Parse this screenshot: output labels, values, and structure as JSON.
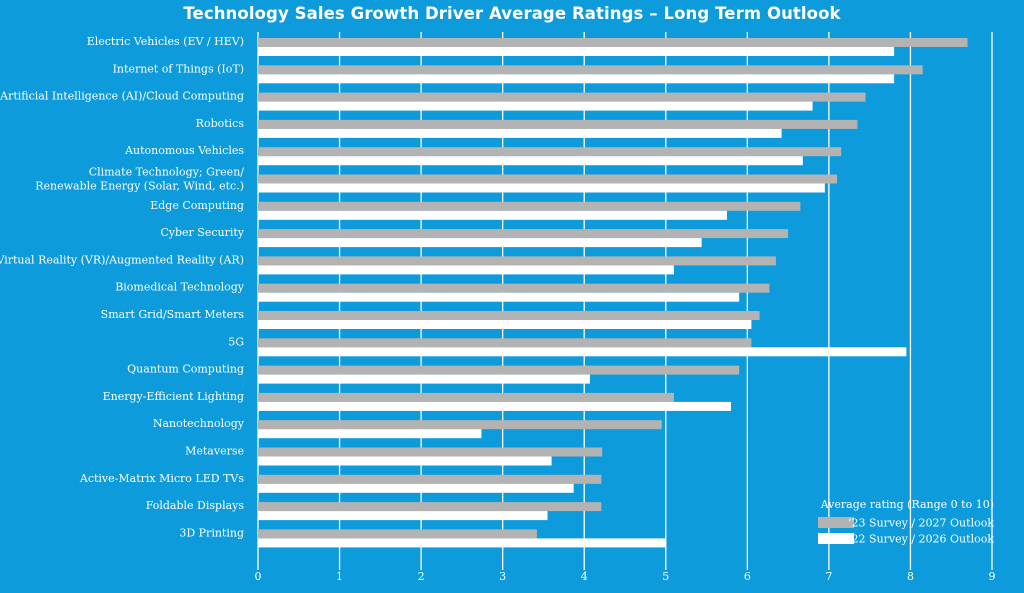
{
  "title": "Technology Sales Growth Driver Average Ratings – Long Term Outlook",
  "colors": {
    "background": "#0E9BDB",
    "series_2023": "#B3B3B3",
    "series_2022": "#FFFFFF",
    "grid": "#FFFFFF"
  },
  "chart_data": {
    "type": "bar",
    "orientation": "horizontal",
    "title": "Technology Sales Growth Driver Average Ratings – Long Term Outlook",
    "xlabel": "",
    "ylabel": "",
    "xlim": [
      0,
      9
    ],
    "xticks": [
      0,
      1,
      2,
      3,
      4,
      5,
      6,
      7,
      8,
      9
    ],
    "grid": "vertical",
    "legend_title": "Average rating (Range 0 to 10)",
    "legend_position": "bottom-right",
    "categories": [
      [
        "Electric Vehicles (EV / HEV)"
      ],
      [
        "Internet of Things (IoT)"
      ],
      [
        "Artificial Intelligence (AI)/Cloud Computing"
      ],
      [
        "Robotics"
      ],
      [
        "Autonomous Vehicles"
      ],
      [
        "Climate Technology; Green/",
        "Renewable Energy (Solar, Wind, etc.)"
      ],
      [
        "Edge Computing"
      ],
      [
        "Cyber Security"
      ],
      [
        "Virtual Reality (VR)/Augmented Reality (AR)"
      ],
      [
        "Biomedical Technology"
      ],
      [
        "Smart Grid/Smart Meters"
      ],
      [
        "5G"
      ],
      [
        "Quantum Computing"
      ],
      [
        "Energy-Efficient Lighting"
      ],
      [
        "Nanotechnology"
      ],
      [
        "Metaverse"
      ],
      [
        "Active-Matrix Micro LED TVs"
      ],
      [
        "Foldable Displays"
      ],
      [
        "3D Printing"
      ]
    ],
    "series": [
      {
        "name": "’23 Survey / 2027 Outlook",
        "color": "#B3B3B3",
        "values": [
          8.7,
          8.15,
          7.45,
          7.35,
          7.15,
          7.1,
          6.65,
          6.5,
          6.35,
          6.27,
          6.15,
          6.05,
          5.9,
          5.1,
          4.95,
          4.22,
          4.21,
          4.21,
          3.42
        ]
      },
      {
        "name": "’22 Survey / 2026 Outlook",
        "color": "#FFFFFF",
        "values": [
          7.8,
          7.8,
          6.8,
          6.42,
          6.68,
          6.95,
          5.75,
          5.44,
          5.1,
          5.9,
          6.05,
          7.95,
          4.07,
          5.8,
          2.74,
          3.6,
          3.87,
          3.55,
          5.0
        ]
      }
    ]
  }
}
